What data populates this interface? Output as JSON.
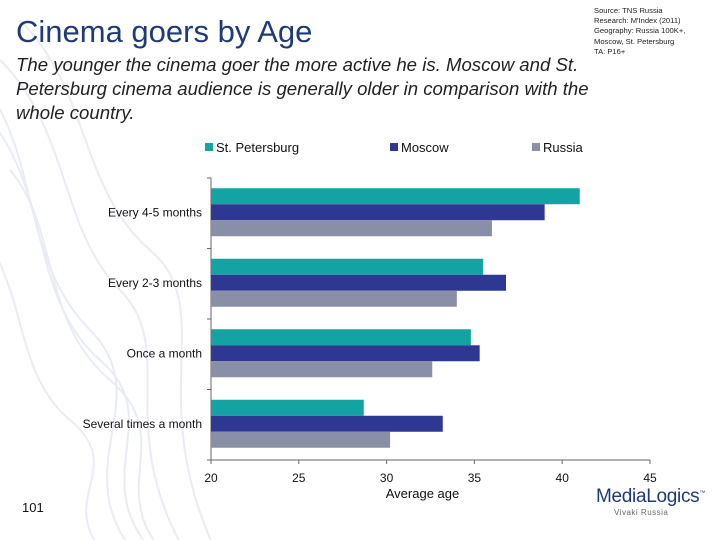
{
  "slide": {
    "title": "Cinema goers by Age",
    "subtitle": "The younger the cinema goer the more active he is. Moscow and St. Petersburg cinema audience  is generally older in comparison with the whole country.",
    "source_lines": [
      "Source: TNS Russia",
      "Research: M'Index (2011)",
      "Geography: Russia 100K+,",
      "Moscow, St. Petersburg",
      "TA: P16+"
    ],
    "page_number": "101",
    "logo": {
      "name": "MediaLogics",
      "tm": "™",
      "tagline": "Vivaki Russia"
    }
  },
  "colors": {
    "title": "#1f3a78",
    "st_petersburg": "#14a3a3",
    "moscow": "#2e3892",
    "russia": "#8a8fa8"
  },
  "chart_data": {
    "type": "bar",
    "orientation": "horizontal",
    "title": "",
    "xlabel": "Average age",
    "ylabel": "",
    "xlim": [
      20,
      45
    ],
    "xticks": [
      20,
      25,
      30,
      35,
      40,
      45
    ],
    "categories": [
      "Every 4-5 months",
      "Every 2-3 months",
      "Once a month",
      "Several times a month"
    ],
    "series": [
      {
        "name": "St. Petersburg",
        "color": "#14a3a3",
        "values": [
          41.0,
          35.5,
          34.8,
          28.7
        ]
      },
      {
        "name": "Moscow",
        "color": "#2e3892",
        "values": [
          39.0,
          36.8,
          35.3,
          33.2
        ]
      },
      {
        "name": "Russia",
        "color": "#8a8fa8",
        "values": [
          36.0,
          34.0,
          32.6,
          30.2
        ]
      }
    ],
    "legend_position": "top",
    "grid": false
  }
}
